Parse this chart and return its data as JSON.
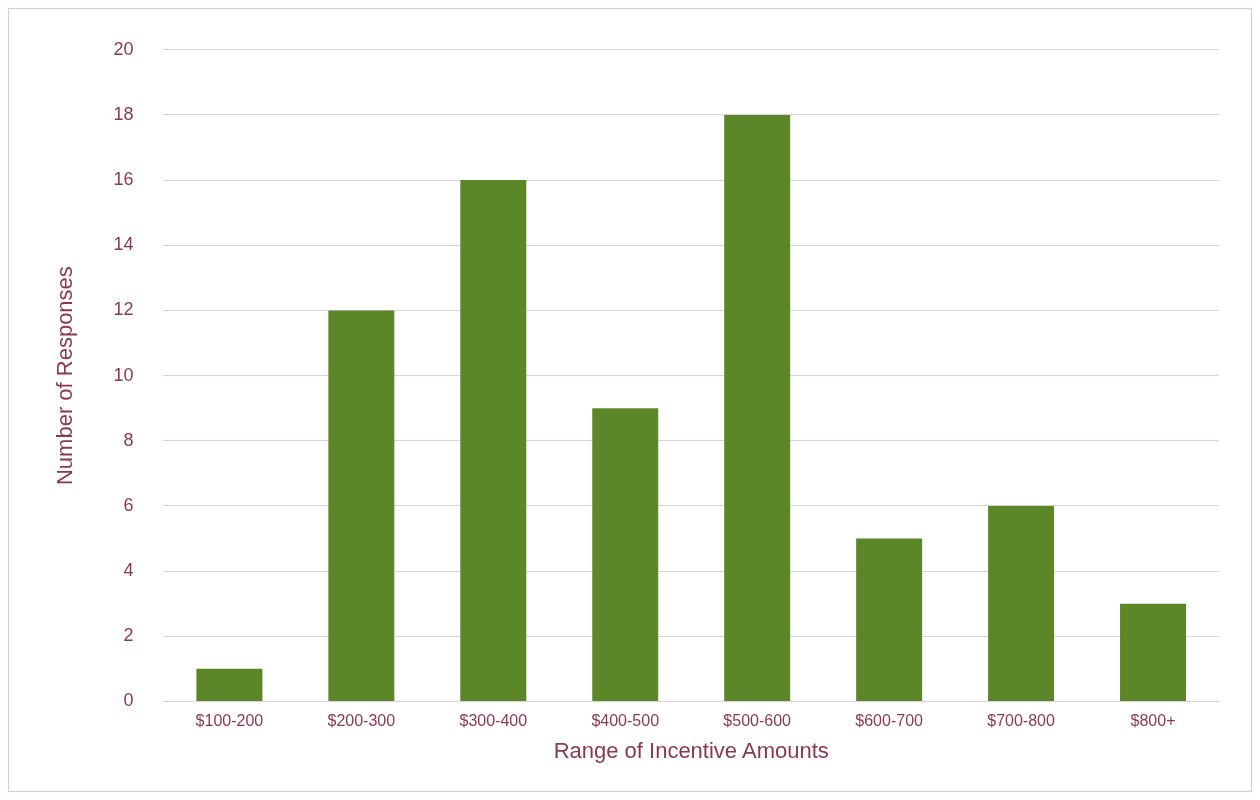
{
  "chart_data": {
    "type": "bar",
    "xlabel": "Range of Incentive Amounts",
    "ylabel": "Number of Responses",
    "categories": [
      "$100-200",
      "$200-300",
      "$300-400",
      "$400-500",
      "$500-600",
      "$600-700",
      "$700-800",
      "$800+"
    ],
    "values": [
      1,
      12,
      16,
      9,
      18,
      5,
      6,
      3
    ],
    "color": "#5b8729",
    "ylim": [
      0,
      20
    ],
    "yticks": [
      0,
      2,
      4,
      6,
      8,
      10,
      12,
      14,
      16,
      18,
      20
    ],
    "grid": "y",
    "legend": false
  }
}
